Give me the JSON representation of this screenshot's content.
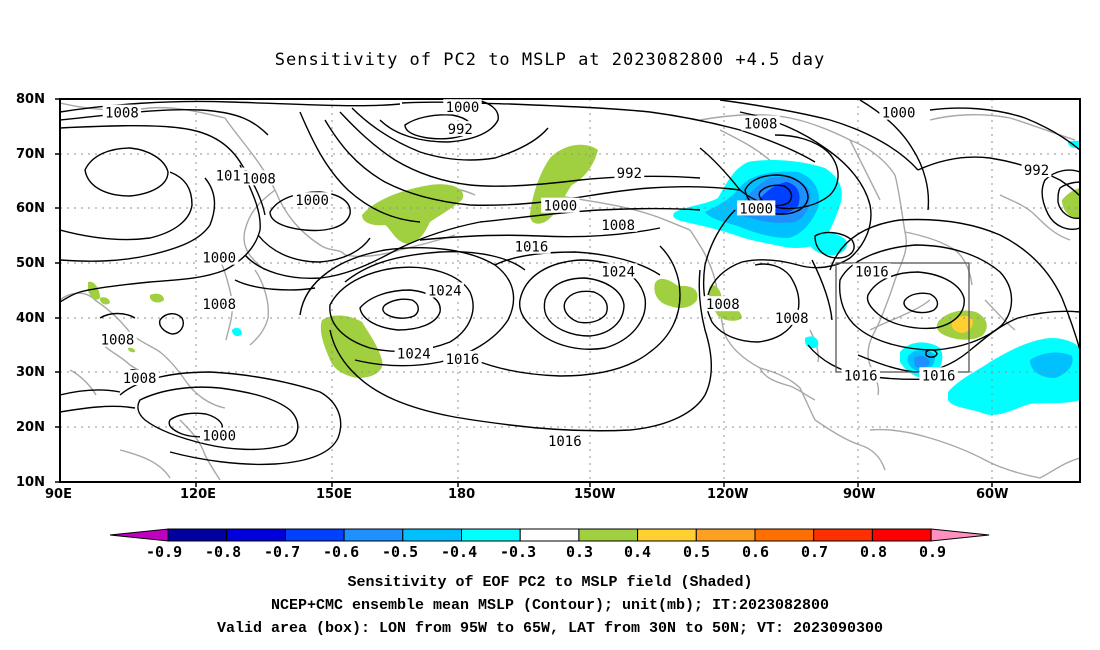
{
  "title": "Sensitivity of PC2 to MSLP at 2023082800 +4.5 day",
  "map": {
    "lat_labels": [
      "80N",
      "70N",
      "60N",
      "50N",
      "40N",
      "30N",
      "20N",
      "10N"
    ],
    "lon_labels": [
      "90E",
      "120E",
      "150E",
      "180",
      "150W",
      "120W",
      "90W",
      "60W"
    ],
    "valid_box": {
      "lon_from": "95W",
      "lon_to": "65W",
      "lat_from": "30N",
      "lat_to": "50N"
    },
    "contour_labels": [
      {
        "text": "1008",
        "lon": 104,
        "lat": 77.5
      },
      {
        "text": "1000",
        "lon": -179,
        "lat": 78.5
      },
      {
        "text": "992",
        "lon": -179.5,
        "lat": 74.5
      },
      {
        "text": "1008",
        "lon": -112,
        "lat": 75.5
      },
      {
        "text": "1000",
        "lon": -81,
        "lat": 77.5
      },
      {
        "text": "992",
        "lon": -50,
        "lat": 67
      },
      {
        "text": "1016",
        "lon": 129,
        "lat": 66
      },
      {
        "text": "1008",
        "lon": 135,
        "lat": 65.5
      },
      {
        "text": "1000",
        "lon": 147,
        "lat": 61.5
      },
      {
        "text": "992",
        "lon": -141.5,
        "lat": 66.5
      },
      {
        "text": "1000",
        "lon": -157,
        "lat": 60.5
      },
      {
        "text": "1008",
        "lon": -144,
        "lat": 57
      },
      {
        "text": "1000",
        "lon": -113,
        "lat": 60
      },
      {
        "text": "1016",
        "lon": -163.5,
        "lat": 53
      },
      {
        "text": "1000",
        "lon": 126,
        "lat": 51
      },
      {
        "text": "1008",
        "lon": 126,
        "lat": 42.5
      },
      {
        "text": "1024",
        "lon": 177,
        "lat": 45
      },
      {
        "text": "1024",
        "lon": -144,
        "lat": 48.5
      },
      {
        "text": "1016",
        "lon": -87,
        "lat": 48.5
      },
      {
        "text": "1008",
        "lon": -120.5,
        "lat": 42.5
      },
      {
        "text": "1008",
        "lon": -105,
        "lat": 40
      },
      {
        "text": "1008",
        "lon": 103,
        "lat": 36
      },
      {
        "text": "1024",
        "lon": 170,
        "lat": 33.5
      },
      {
        "text": "1016",
        "lon": -179,
        "lat": 32.5
      },
      {
        "text": "1008",
        "lon": 108,
        "lat": 29
      },
      {
        "text": "1016",
        "lon": -89.5,
        "lat": 29.5
      },
      {
        "text": "1016",
        "lon": -72,
        "lat": 29.5
      },
      {
        "text": "1000",
        "lon": 126,
        "lat": 18.5
      },
      {
        "text": "1016",
        "lon": -156,
        "lat": 17.5
      }
    ]
  },
  "colorbar": {
    "labels": [
      "-0.9",
      "-0.8",
      "-0.7",
      "-0.6",
      "-0.5",
      "-0.4",
      "-0.3",
      "0.3",
      "0.4",
      "0.5",
      "0.6",
      "0.7",
      "0.8",
      "0.9"
    ],
    "colors": [
      "#c000c0",
      "#0000a0",
      "#0000dc",
      "#0040ff",
      "#1e90ff",
      "#00c0ff",
      "#00ffff",
      "#ffffff",
      "#a0d040",
      "#ffd030",
      "#ffa020",
      "#ff7000",
      "#ff3000",
      "#ff0000",
      "#ff90c0"
    ]
  },
  "caption": {
    "line1": "Sensitivity of EOF PC2 to MSLP field (Shaded)",
    "line2": "NCEP+CMC ensemble mean MSLP (Contour); unit(mb); IT:2023082800",
    "line3": "Valid area (box): LON from 95W to 65W, LAT from 30N to 50N; VT: 2023090300"
  }
}
